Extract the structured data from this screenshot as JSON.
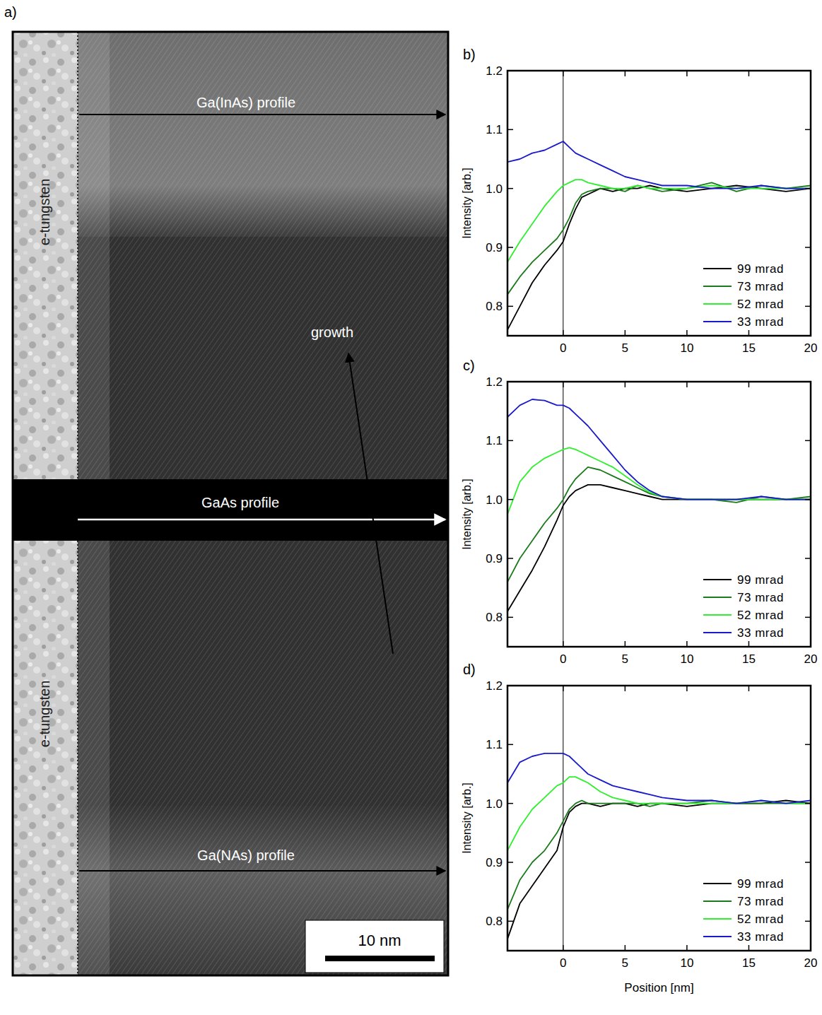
{
  "panel_a": {
    "label": "a)",
    "tungsten_labels": [
      "e-tungsten",
      "e-tungsten"
    ],
    "profiles": [
      "Ga(InAs) profile",
      "GaAs profile",
      "Ga(NAs) profile"
    ],
    "growth": "growth",
    "scale_bar": "10 nm"
  },
  "chart_data": [
    {
      "type": "line",
      "panel": "b)",
      "y_label": "Intensity  [arb.]",
      "x": [
        -4.5,
        -3.5,
        -2.5,
        -1.5,
        -0.5,
        0,
        0.5,
        1,
        1.5,
        2,
        3,
        4,
        5,
        6,
        7,
        8,
        10,
        12,
        14,
        16,
        18,
        20
      ],
      "xlim": [
        -4.5,
        20
      ],
      "xticks": [
        0,
        5,
        10,
        15,
        20
      ],
      "ylim": [
        0.75,
        1.2
      ],
      "yticks": [
        0.8,
        0.9,
        {
          "value": 1,
          "label": "1.0"
        },
        1.1,
        1.2
      ],
      "vline": 0,
      "legend": "lower right",
      "series": [
        {
          "name": "99 mrad",
          "color": "#000000",
          "values": [
            0.76,
            0.8,
            0.84,
            0.87,
            0.895,
            0.91,
            0.94,
            0.965,
            0.985,
            0.99,
            1.0,
            0.995,
            1.0,
            1.0,
            1.005,
            1.0,
            0.995,
            1.0,
            1.005,
            1.0,
            0.995,
            1.0
          ]
        },
        {
          "name": "73 mrad",
          "color": "#1b7a1b",
          "values": [
            0.82,
            0.85,
            0.875,
            0.895,
            0.915,
            0.93,
            0.95,
            0.975,
            0.99,
            0.995,
            1.0,
            1.0,
            0.995,
            1.005,
            1.0,
            0.995,
            1.0,
            1.01,
            0.995,
            1.005,
            1.0,
            1.005
          ]
        },
        {
          "name": "52 mrad",
          "color": "#2ef02e",
          "values": [
            0.875,
            0.91,
            0.94,
            0.97,
            0.995,
            1.005,
            1.01,
            1.015,
            1.015,
            1.01,
            1.005,
            1.0,
            1.0,
            1.005,
            1.0,
            1.0,
            1.0,
            1.005,
            1.0,
            1.0,
            1.0,
            1.0
          ]
        },
        {
          "name": "33 mrad",
          "color": "#1a1acc",
          "values": [
            1.045,
            1.05,
            1.06,
            1.065,
            1.075,
            1.08,
            1.07,
            1.06,
            1.055,
            1.05,
            1.04,
            1.03,
            1.02,
            1.015,
            1.01,
            1.005,
            1.005,
            1.0,
            1.0,
            1.005,
            1.0,
            1.0
          ]
        }
      ]
    },
    {
      "type": "line",
      "panel": "c)",
      "y_label": "Intensity  [arb.]",
      "x": [
        -4.5,
        -3.5,
        -2.5,
        -1.5,
        -0.5,
        0,
        0.5,
        1,
        1.5,
        2,
        3,
        4,
        5,
        6,
        7,
        8,
        10,
        12,
        14,
        16,
        18,
        20
      ],
      "xlim": [
        -4.5,
        20
      ],
      "xticks": [
        0,
        5,
        10,
        15,
        20
      ],
      "ylim": [
        0.75,
        1.2
      ],
      "yticks": [
        0.8,
        0.9,
        {
          "value": 1,
          "label": "1.0"
        },
        1.1,
        1.2
      ],
      "vline": 0,
      "legend": "lower right",
      "series": [
        {
          "name": "99 mrad",
          "color": "#000000",
          "values": [
            0.81,
            0.845,
            0.88,
            0.92,
            0.965,
            0.99,
            1.005,
            1.015,
            1.02,
            1.025,
            1.025,
            1.02,
            1.015,
            1.01,
            1.005,
            1.0,
            1.0,
            1.0,
            1.0,
            1.0,
            1.0,
            1.0
          ]
        },
        {
          "name": "73 mrad",
          "color": "#1b7a1b",
          "values": [
            0.86,
            0.9,
            0.93,
            0.96,
            0.985,
            1.0,
            1.02,
            1.035,
            1.045,
            1.055,
            1.05,
            1.04,
            1.03,
            1.02,
            1.01,
            1.005,
            1.0,
            1.0,
            0.995,
            1.005,
            1.0,
            1.005
          ]
        },
        {
          "name": "52 mrad",
          "color": "#2ef02e",
          "values": [
            0.975,
            1.03,
            1.055,
            1.07,
            1.08,
            1.085,
            1.088,
            1.085,
            1.08,
            1.075,
            1.065,
            1.055,
            1.04,
            1.025,
            1.012,
            1.005,
            1.0,
            1.0,
            1.0,
            1.0,
            1.0,
            1.0
          ]
        },
        {
          "name": "33 mrad",
          "color": "#1a1acc",
          "values": [
            1.14,
            1.16,
            1.17,
            1.168,
            1.16,
            1.16,
            1.155,
            1.145,
            1.135,
            1.125,
            1.1,
            1.075,
            1.05,
            1.03,
            1.015,
            1.005,
            1.0,
            1.0,
            1.0,
            1.005,
            1.0,
            1.0
          ]
        }
      ]
    },
    {
      "type": "line",
      "panel": "d)",
      "y_label": "Intensity  [arb.]",
      "x_label": "Position [nm]",
      "x": [
        -4.5,
        -3.5,
        -2.5,
        -1.5,
        -0.5,
        0,
        0.5,
        1,
        1.5,
        2,
        3,
        4,
        5,
        6,
        7,
        8,
        10,
        12,
        14,
        16,
        18,
        20
      ],
      "xlim": [
        -4.5,
        20
      ],
      "xticks": [
        0,
        5,
        10,
        15,
        20
      ],
      "ylim": [
        0.75,
        1.2
      ],
      "yticks": [
        0.8,
        0.9,
        {
          "value": 1,
          "label": "1.0"
        },
        1.1,
        1.2
      ],
      "vline": 0,
      "legend": "lower right",
      "series": [
        {
          "name": "99 mrad",
          "color": "#000000",
          "values": [
            0.77,
            0.83,
            0.86,
            0.89,
            0.92,
            0.96,
            0.985,
            0.995,
            1.0,
            1.0,
            0.995,
            1.0,
            1.0,
            0.995,
            1.0,
            1.0,
            0.995,
            1.0,
            1.0,
            1.0,
            1.005,
            1.0
          ]
        },
        {
          "name": "73 mrad",
          "color": "#1b7a1b",
          "values": [
            0.82,
            0.87,
            0.9,
            0.92,
            0.95,
            0.97,
            0.99,
            1.0,
            1.005,
            1.0,
            1.0,
            1.0,
            1.0,
            1.0,
            0.995,
            1.0,
            1.0,
            1.005,
            1.0,
            1.0,
            1.0,
            1.0
          ]
        },
        {
          "name": "52 mrad",
          "color": "#2ef02e",
          "values": [
            0.92,
            0.96,
            0.99,
            1.01,
            1.03,
            1.035,
            1.045,
            1.045,
            1.04,
            1.035,
            1.02,
            1.01,
            1.005,
            1.0,
            1.0,
            1.0,
            1.0,
            1.0,
            1.0,
            1.005,
            1.0,
            1.0
          ]
        },
        {
          "name": "33 mrad",
          "color": "#1a1acc",
          "values": [
            1.035,
            1.07,
            1.08,
            1.085,
            1.085,
            1.085,
            1.08,
            1.07,
            1.06,
            1.05,
            1.04,
            1.03,
            1.025,
            1.02,
            1.015,
            1.01,
            1.005,
            1.005,
            1.0,
            1.005,
            1.0,
            1.005
          ]
        }
      ]
    }
  ]
}
